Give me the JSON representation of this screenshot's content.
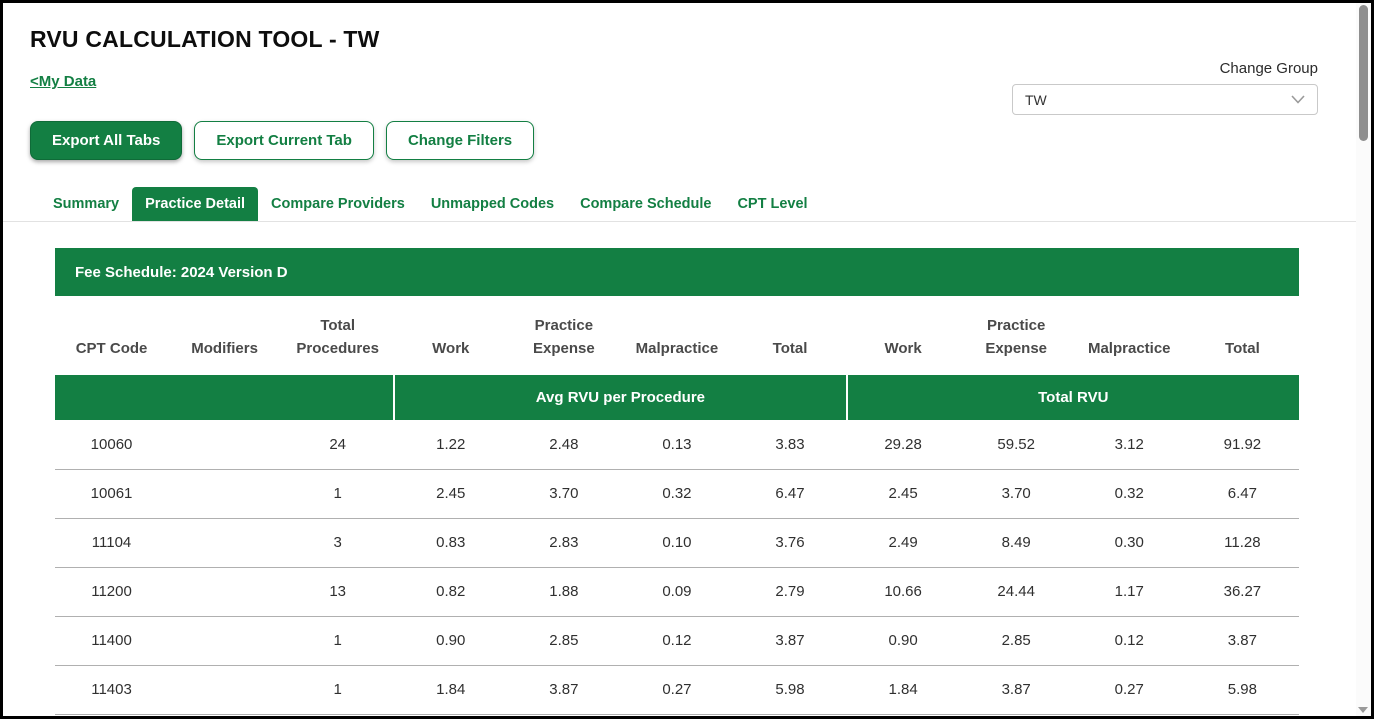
{
  "page": {
    "title": "RVU CALCULATION TOOL - TW",
    "back_link": "<My Data",
    "change_group_label": "Change Group",
    "group_select_value": "TW"
  },
  "toolbar": {
    "buttons": [
      {
        "label": "Export All Tabs",
        "variant": "primary"
      },
      {
        "label": "Export Current Tab",
        "variant": "secondary"
      },
      {
        "label": "Change Filters",
        "variant": "secondary"
      }
    ]
  },
  "tabs": [
    {
      "label": "Summary",
      "active": false
    },
    {
      "label": "Practice Detail",
      "active": true
    },
    {
      "label": "Compare Providers",
      "active": false
    },
    {
      "label": "Unmapped Codes",
      "active": false
    },
    {
      "label": "Compare Schedule",
      "active": false
    },
    {
      "label": "CPT Level",
      "active": false
    }
  ],
  "table": {
    "banner": "Fee Schedule: 2024 Version D",
    "columns": [
      "CPT Code",
      "Modifiers",
      "Total Procedures",
      "Work",
      "Practice Expense",
      "Malpractice",
      "Total",
      "Work",
      "Practice Expense",
      "Malpractice",
      "Total"
    ],
    "group_headers": [
      {
        "label": "",
        "span": 3
      },
      {
        "label": "Avg RVU per Procedure",
        "span": 4
      },
      {
        "label": "Total RVU",
        "span": 4
      }
    ],
    "rows": [
      [
        "10060",
        "",
        "24",
        "1.22",
        "2.48",
        "0.13",
        "3.83",
        "29.28",
        "59.52",
        "3.12",
        "91.92"
      ],
      [
        "10061",
        "",
        "1",
        "2.45",
        "3.70",
        "0.32",
        "6.47",
        "2.45",
        "3.70",
        "0.32",
        "6.47"
      ],
      [
        "11104",
        "",
        "3",
        "0.83",
        "2.83",
        "0.10",
        "3.76",
        "2.49",
        "8.49",
        "0.30",
        "11.28"
      ],
      [
        "11200",
        "",
        "13",
        "0.82",
        "1.88",
        "0.09",
        "2.79",
        "10.66",
        "24.44",
        "1.17",
        "36.27"
      ],
      [
        "11400",
        "",
        "1",
        "0.90",
        "2.85",
        "0.12",
        "3.87",
        "0.90",
        "2.85",
        "0.12",
        "3.87"
      ],
      [
        "11403",
        "",
        "1",
        "1.84",
        "3.87",
        "0.27",
        "5.98",
        "1.84",
        "3.87",
        "0.27",
        "5.98"
      ]
    ]
  },
  "colors": {
    "accent_green": "#137f43",
    "header_text": "#4a4a4a",
    "row_divider": "#b0b0b0"
  }
}
